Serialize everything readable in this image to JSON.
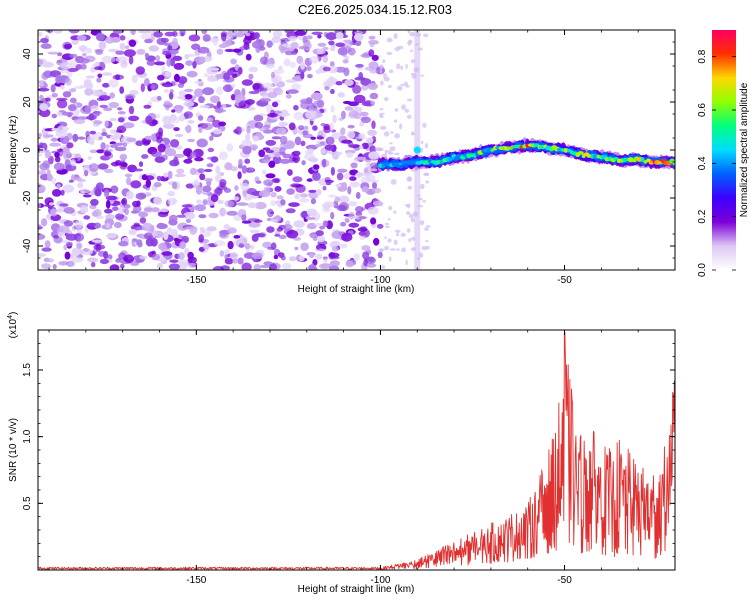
{
  "title": "C2E6.2025.034.15.12.R03",
  "chart_data": [
    {
      "type": "heatmap",
      "name": "spectrogram",
      "xlabel": "Height of straight line (km)",
      "ylabel": "Frequency (Hz)",
      "xlim": [
        -193,
        -20
      ],
      "ylim": [
        -50,
        50
      ],
      "xticks": [
        -150,
        -100,
        -50
      ],
      "xtick_labels": [
        "-150",
        "-100",
        "-50"
      ],
      "yticks": [
        -40,
        -20,
        0,
        20,
        40
      ],
      "ytick_labels": [
        "-40",
        "-20",
        "0",
        "20",
        "40"
      ],
      "noise_region_x": [
        -193,
        -100
      ],
      "transition_region_x": [
        -100,
        -87
      ],
      "signal_track": {
        "x": [
          -100,
          -95,
          -90,
          -85,
          -80,
          -75,
          -70,
          -65,
          -60,
          -55,
          -50,
          -45,
          -40,
          -35,
          -30,
          -25,
          -20
        ],
        "frequency": [
          -6,
          -6,
          -5,
          -5,
          -3,
          -2,
          0,
          1,
          2,
          1,
          0,
          -2,
          -3,
          -4,
          -4,
          -5,
          -5
        ],
        "amplitude": [
          0.45,
          0.4,
          0.45,
          0.5,
          0.55,
          0.55,
          0.6,
          0.7,
          0.75,
          0.7,
          0.65,
          0.65,
          0.65,
          0.7,
          0.75,
          0.8,
          0.75
        ]
      },
      "colorbar": {
        "label": "Normalized spectral amplitude",
        "range": [
          0,
          0.9
        ],
        "ticks": [
          0.0,
          0.2,
          0.4,
          0.6,
          0.8
        ],
        "tick_labels": [
          "0.0",
          "0.2",
          "0.4",
          "0.6",
          "0.8"
        ],
        "colors": [
          "#ffffff",
          "#ddc8f4",
          "#7d00d8",
          "#3c00ff",
          "#0060ff",
          "#00ddff",
          "#00ff80",
          "#90ff00",
          "#ffd800",
          "#ff3000",
          "#ff0060"
        ]
      }
    },
    {
      "type": "line",
      "name": "snr",
      "xlabel": "Height of straight line (km)",
      "ylabel": "SNR (10 * v/v)",
      "y_multiplier_label": "(x10",
      "y_multiplier_exp": "4",
      "xlim": [
        -193,
        -20
      ],
      "ylim": [
        0,
        1.8
      ],
      "xticks": [
        -150,
        -100,
        -50
      ],
      "xtick_labels": [
        "-150",
        "-100",
        "-50"
      ],
      "yticks": [
        0.5,
        1.0,
        1.5
      ],
      "ytick_labels": [
        "0.5",
        "1.0",
        "1.5"
      ],
      "color": "#e03030",
      "envelope": {
        "x": [
          -193,
          -100,
          -95,
          -90,
          -85,
          -80,
          -75,
          -70,
          -65,
          -60,
          -55,
          -52,
          -50,
          -47,
          -45,
          -42,
          -40,
          -37,
          -35,
          -30,
          -25,
          -22,
          -20
        ],
        "upper": [
          0.02,
          0.02,
          0.05,
          0.08,
          0.15,
          0.22,
          0.28,
          0.35,
          0.42,
          0.5,
          0.85,
          1.1,
          1.78,
          1.15,
          1.0,
          1.05,
          0.95,
          0.9,
          1.0,
          0.8,
          0.75,
          1.0,
          1.5
        ],
        "lower": [
          0.0,
          0.0,
          0.01,
          0.01,
          0.02,
          0.03,
          0.04,
          0.05,
          0.06,
          0.08,
          0.12,
          0.15,
          0.18,
          0.15,
          0.12,
          0.15,
          0.12,
          0.1,
          0.1,
          0.1,
          0.08,
          0.15,
          0.7
        ]
      },
      "peak": {
        "x": -50,
        "y": 1.78
      }
    }
  ]
}
